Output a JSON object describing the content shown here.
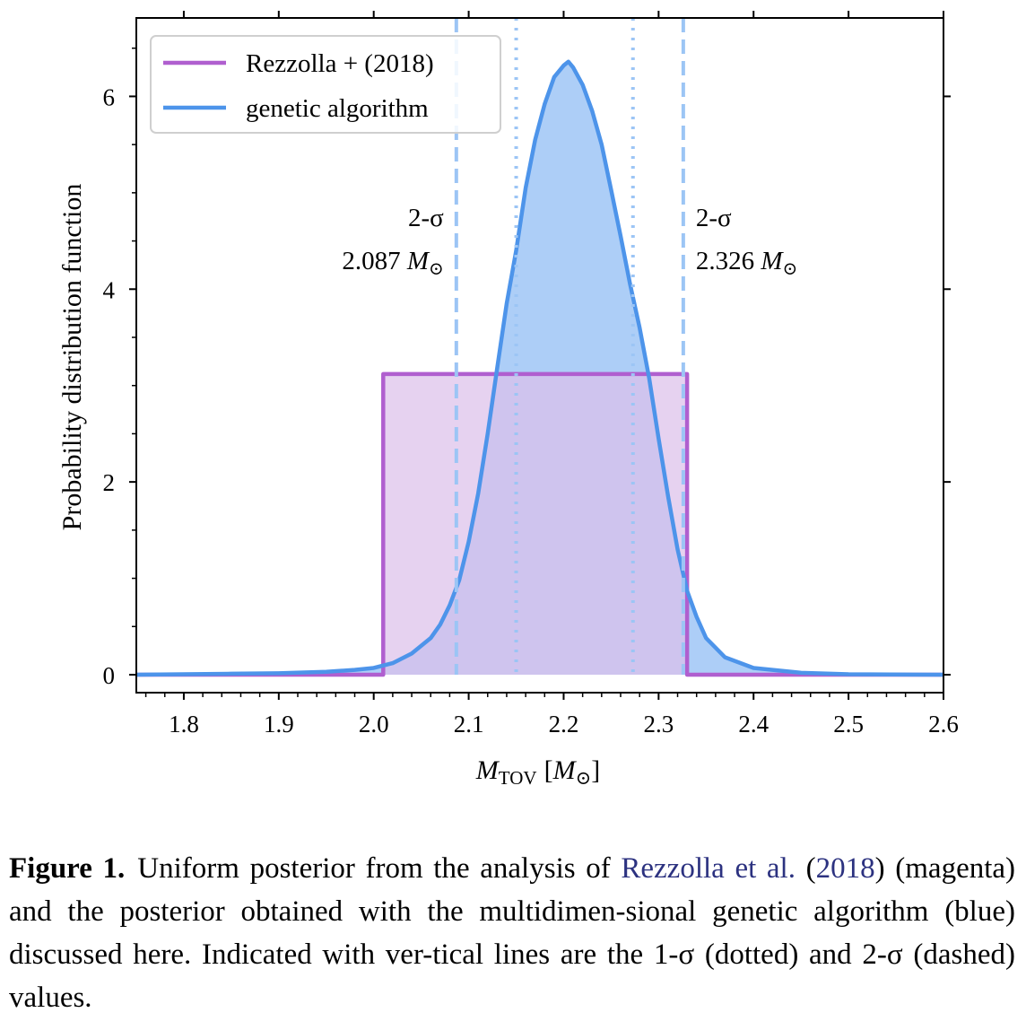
{
  "chart_data": {
    "type": "area",
    "xlabel_main": "M",
    "xlabel_sub": "TOV",
    "xlabel_unit": "[M",
    "xlabel_unit_sub": "⊙",
    "xlabel_close": "]",
    "ylabel": "Probability distribution function",
    "xlim": [
      1.75,
      2.6
    ],
    "ylim": [
      0,
      7
    ],
    "xticks": [
      1.8,
      1.9,
      2.0,
      2.1,
      2.2,
      2.3,
      2.4,
      2.5,
      2.6
    ],
    "xtick_labels": [
      "1.8",
      "1.9",
      "2.0",
      "2.1",
      "2.2",
      "2.3",
      "2.4",
      "2.5",
      "2.6"
    ],
    "yticks": [
      0,
      2,
      4,
      6
    ],
    "ytick_labels": [
      "0",
      "2",
      "4",
      "6"
    ],
    "legend_position": "top-left",
    "series": [
      {
        "name": "Rezzolla + (2018)",
        "color": "#b05fcf",
        "fill": "#dcc0ea",
        "x": [
          1.75,
          2.01,
          2.01,
          2.33,
          2.33,
          2.6
        ],
        "y": [
          0,
          0,
          3.12,
          3.12,
          0,
          0
        ]
      },
      {
        "name": "genetic algorithm",
        "color": "#4d94ea",
        "fill": "#a9cbf7",
        "x": [
          1.75,
          1.85,
          1.9,
          1.95,
          1.98,
          2.0,
          2.02,
          2.04,
          2.06,
          2.07,
          2.08,
          2.09,
          2.1,
          2.11,
          2.12,
          2.13,
          2.14,
          2.15,
          2.16,
          2.17,
          2.18,
          2.19,
          2.2,
          2.205,
          2.21,
          2.22,
          2.23,
          2.24,
          2.25,
          2.26,
          2.27,
          2.28,
          2.29,
          2.3,
          2.31,
          2.32,
          2.33,
          2.34,
          2.35,
          2.37,
          2.4,
          2.45,
          2.5,
          2.6
        ],
        "y": [
          0.0,
          0.01,
          0.015,
          0.03,
          0.05,
          0.07,
          0.12,
          0.22,
          0.38,
          0.52,
          0.72,
          0.98,
          1.38,
          1.88,
          2.5,
          3.18,
          3.85,
          4.4,
          5.05,
          5.55,
          5.92,
          6.2,
          6.32,
          6.36,
          6.3,
          6.12,
          5.85,
          5.5,
          5.03,
          4.55,
          4.05,
          3.6,
          3.08,
          2.45,
          1.85,
          1.3,
          0.87,
          0.6,
          0.38,
          0.18,
          0.07,
          0.02,
          0.005,
          0.0
        ]
      }
    ],
    "sigma_lines": [
      {
        "kind": "1-sigma",
        "style": "dotted",
        "x": 2.15
      },
      {
        "kind": "1-sigma",
        "style": "dotted",
        "x": 2.273
      },
      {
        "kind": "2-sigma",
        "style": "dashed",
        "x": 2.087
      },
      {
        "kind": "2-sigma",
        "style": "dashed",
        "x": 2.326
      }
    ],
    "annotations": [
      {
        "side": "left",
        "line1": "2-σ",
        "value": "2.087",
        "unit": "M",
        "unit_sub": "⊙"
      },
      {
        "side": "right",
        "line1": "2-σ",
        "value": "2.326",
        "unit": "M",
        "unit_sub": "⊙"
      }
    ],
    "colors": {
      "sigma_line": "#9cc5f5"
    }
  },
  "caption": {
    "label": "Figure 1.",
    "text_1": "Uniform posterior from the analysis of",
    "link_1": "Rezzolla et al.",
    "paren_open": "(",
    "link_2": "2018",
    "text_2": ") (magenta) and the posterior obtained with the multidimen-sional genetic algorithm (blue) discussed here. Indicated with ver-tical lines are the 1-σ (dotted) and 2-σ (dashed) values."
  }
}
